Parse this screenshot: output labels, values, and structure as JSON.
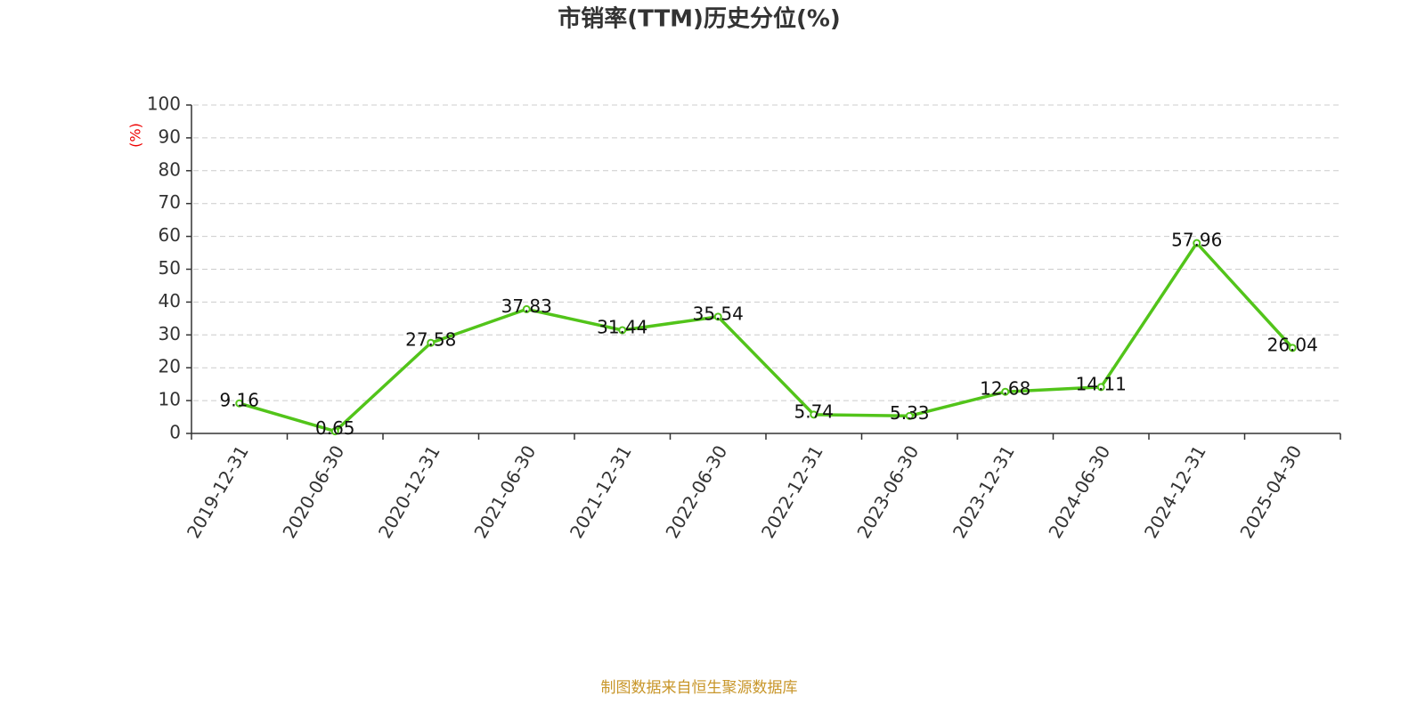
{
  "chart_data": {
    "type": "line",
    "title": "市销率(TTM)历史分位(%)",
    "y_label": "(%)",
    "categories": [
      "2019-12-31",
      "2020-06-30",
      "2020-12-31",
      "2021-06-30",
      "2021-12-31",
      "2022-06-30",
      "2022-12-31",
      "2023-06-30",
      "2023-12-31",
      "2024-06-30",
      "2024-12-31",
      "2025-04-30"
    ],
    "series": [
      {
        "name": "市销率(TTM)历史分位",
        "color": "#52c41a",
        "values": [
          9.16,
          0.65,
          27.58,
          37.83,
          31.44,
          35.54,
          5.74,
          5.33,
          12.68,
          14.11,
          57.96,
          26.04
        ]
      }
    ],
    "ylim": [
      0,
      100
    ],
    "yticks": [
      0,
      10,
      20,
      30,
      40,
      50,
      60,
      70,
      80,
      90,
      100
    ],
    "grid": true,
    "source": "制图数据来自恒生聚源数据库"
  }
}
